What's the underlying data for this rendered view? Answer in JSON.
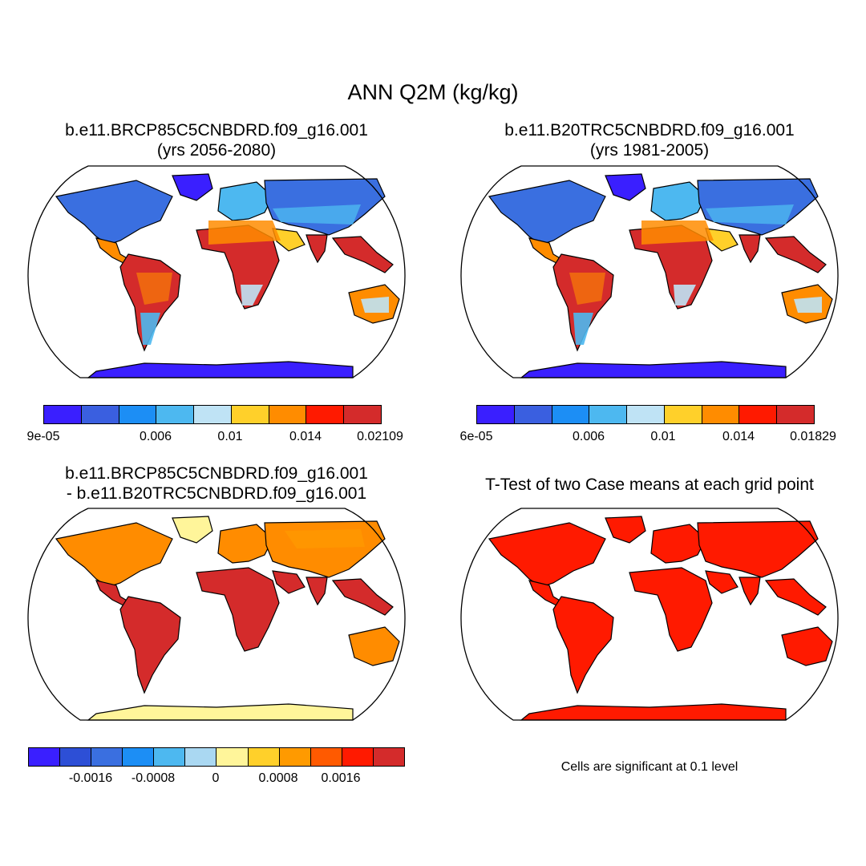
{
  "figure": {
    "title": "ANN Q2M (kg/kg)",
    "panels": [
      {
        "title_line1": "b.e11.BRCP85C5CNBDRD.f09_g16.001",
        "title_line2": "(yrs 2056-2080)",
        "colorbar": {
          "colors": [
            "#3a1fff",
            "#3a5fe0",
            "#1c8ef5",
            "#4db8f0",
            "#bfe3f5",
            "#ffd02a",
            "#ff8c00",
            "#ff1a00",
            "#d42b2b"
          ],
          "labels": [
            "9e-05",
            "0.006",
            "0.01",
            "0.014",
            "0.02109"
          ]
        }
      },
      {
        "title_line1": "b.e11.B20TRC5CNBDRD.f09_g16.001",
        "title_line2": "(yrs 1981-2005)",
        "colorbar": {
          "colors": [
            "#3a1fff",
            "#3a5fe0",
            "#1c8ef5",
            "#4db8f0",
            "#bfe3f5",
            "#ffd02a",
            "#ff8c00",
            "#ff1a00",
            "#d42b2b"
          ],
          "labels": [
            "6e-05",
            "0.006",
            "0.01",
            "0.014",
            "0.01829"
          ]
        }
      },
      {
        "title_line1": "b.e11.BRCP85C5CNBDRD.f09_g16.001",
        "title_line2": "- b.e11.B20TRC5CNBDRD.f09_g16.001",
        "colorbar": {
          "colors": [
            "#3a1fff",
            "#2d4fd6",
            "#3a6fe0",
            "#1c8ef5",
            "#4db8f0",
            "#aad8f2",
            "#fff59a",
            "#ffd02a",
            "#ff9a00",
            "#ff5a00",
            "#ff1a00",
            "#d42b2b"
          ],
          "labels": [
            "-0.0016",
            "-0.0008",
            "0",
            "0.0008",
            "0.0016"
          ]
        }
      },
      {
        "title_line1": "T-Test of two Case means at each grid point",
        "note": "Cells are significant at 0.1 level"
      }
    ]
  }
}
